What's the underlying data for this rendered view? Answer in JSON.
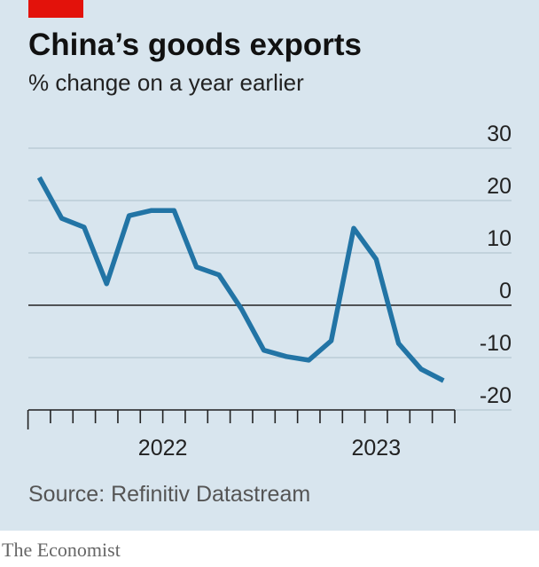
{
  "chart_data": {
    "type": "line",
    "title": "China’s goods exports",
    "subtitle": "% change on a year earlier",
    "source": "Source: Refinitiv Datastream",
    "brand": "The Economist",
    "x": [
      0,
      1,
      2,
      3,
      4,
      5,
      6,
      7,
      8,
      9,
      10,
      11,
      12,
      13,
      14,
      15,
      16,
      17,
      18
    ],
    "series": [
      {
        "color": "#2274a5",
        "values": [
          24.4,
          16.6,
          14.9,
          4.1,
          17.1,
          18.1,
          18.1,
          7.3,
          5.8,
          -0.7,
          -8.6,
          -9.8,
          -10.5,
          -6.8,
          14.7,
          8.8,
          -7.3,
          -12.2,
          -14.4
        ]
      }
    ],
    "xlim": [
      -0.5,
      21.5
    ],
    "xticks": [
      -0.5,
      0.5,
      1.5,
      2.5,
      3.5,
      4.5,
      5.5,
      6.5,
      7.5,
      8.5,
      9.5,
      10.5,
      11.5,
      12.5,
      13.5,
      14.5,
      15.5,
      16.5,
      17.5,
      18.5
    ],
    "xtick_labels": [
      {
        "value": 5.5,
        "label": "2022"
      },
      {
        "value": 15,
        "label": "2023"
      }
    ],
    "ylim": [
      -20,
      30
    ],
    "yticks": [
      30,
      20,
      10,
      0,
      -10,
      -20
    ],
    "grid": true
  }
}
